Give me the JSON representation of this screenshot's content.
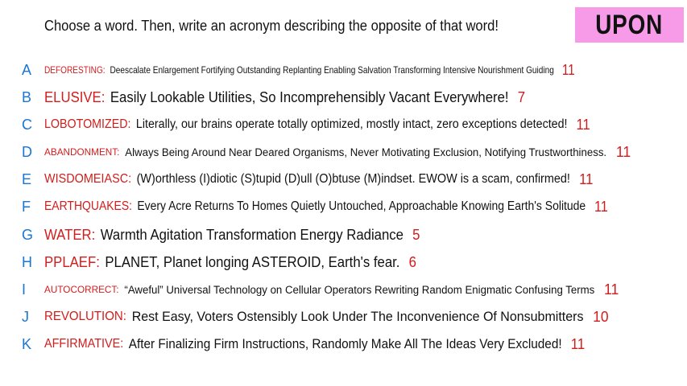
{
  "prompt": "Choose a word. Then, write an acronym describing the opposite of that word!",
  "word": "UPON",
  "colors": {
    "badge": "#f79be8",
    "letter": "#1976d2",
    "term": "#d31c1c",
    "text": "#111111"
  },
  "entries": [
    {
      "letter": "A",
      "term": "DEFORESTING:",
      "text": "Deescalate Enlargement Fortifying Outstanding Replanting Enabling Salvation Transforming Intensive Nourishment Guiding",
      "count": "11"
    },
    {
      "letter": "B",
      "term": "ELUSIVE:",
      "text": "Easily Lookable Utilities, So Incomprehensibly Vacant Everywhere!",
      "count": "7"
    },
    {
      "letter": "C",
      "term": "LOBOTOMIZED:",
      "text": "Literally, our brains operate totally optimized, mostly intact, zero exceptions detected!",
      "count": "11"
    },
    {
      "letter": "D",
      "term": "ABANDONMENT:",
      "text": "Always Being Around Near Deared Organisms, Never Motivating Exclusion, Notifying Trustworthiness.",
      "count": "11"
    },
    {
      "letter": "E",
      "term": "WISDOMEIASC:",
      "text": "(W)orthless (I)diotic (S)tupid (D)ull (O)btuse (M)indset. EWOW is a scam, confirmed!",
      "count": "11"
    },
    {
      "letter": "F",
      "term": "EARTHQUAKES:",
      "text": "Every Acre Returns To Homes Quietly Untouched, Approachable Knowing Earth's Solitude",
      "count": "11"
    },
    {
      "letter": "G",
      "term": "WATER:",
      "text": "Warmth Agitation Transformation Energy Radiance",
      "count": "5"
    },
    {
      "letter": "H",
      "term": "PPLAEF:",
      "text": "PLANET, Planet longing ASTEROID, Earth's fear.",
      "count": "6"
    },
    {
      "letter": "I",
      "term": "AUTOCORRECT:",
      "text": "“Aweful” Universal Technology on Cellular Operators Rewriting Random Enigmatic Confusing Terms",
      "count": "11"
    },
    {
      "letter": "J",
      "term": "REVOLUTION:",
      "text": "Rest Easy, Voters Ostensibly Look Under The Inconvenience Of Nonsubmitters",
      "count": "10"
    },
    {
      "letter": "K",
      "term": "AFFIRMATIVE:",
      "text": "After Finalizing Firm Instructions, Randomly Make All The Ideas Very Excluded!",
      "count": "11"
    }
  ]
}
